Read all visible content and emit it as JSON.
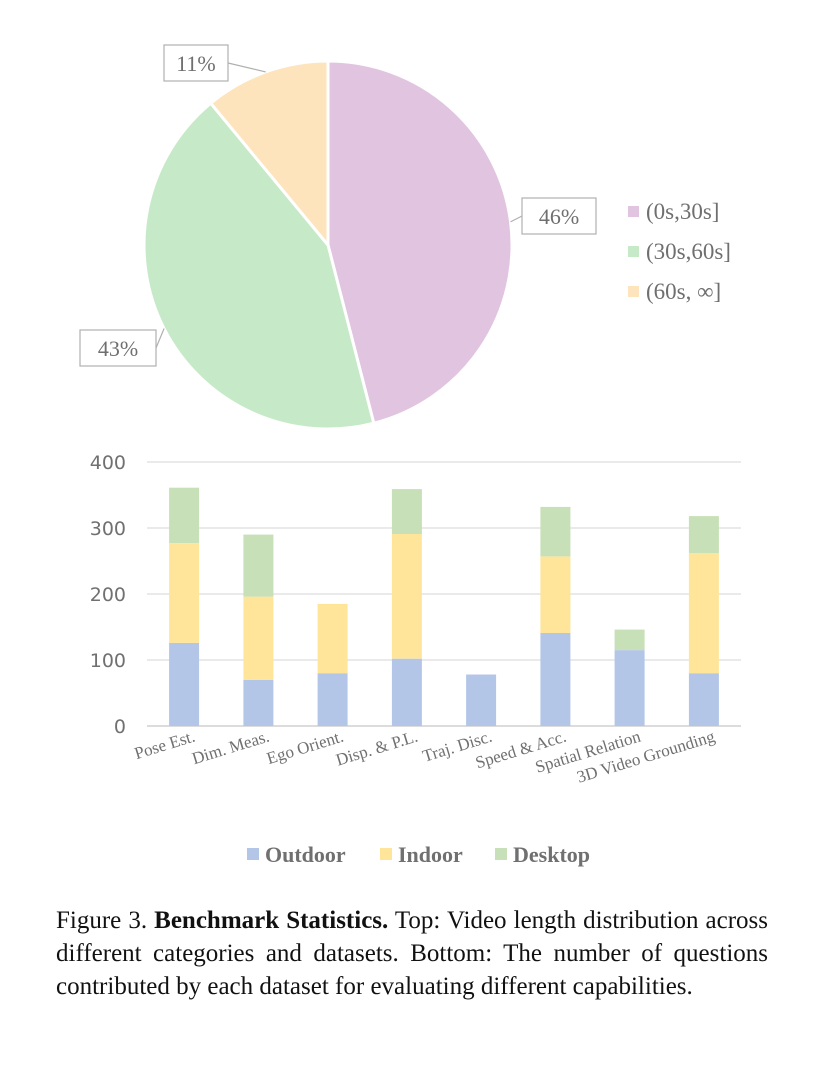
{
  "chart_data": [
    {
      "type": "pie",
      "labels": [
        "(0s,30s]",
        "(30s,60s]",
        "(60s, ∞]"
      ],
      "values": [
        46,
        43,
        11
      ],
      "data_labels": [
        "46%",
        "43%",
        "11%"
      ],
      "colors": [
        "#e1c4e0",
        "#c6e9c7",
        "#fde4bd"
      ],
      "legend_position": "right"
    },
    {
      "type": "bar",
      "stacked": true,
      "categories": [
        "Pose Est.",
        "Dim. Meas.",
        "Ego Orient.",
        "Disp. & P.L.",
        "Traj. Disc.",
        "Speed & Acc.",
        "Spatial Relation",
        "3D Video Grounding"
      ],
      "series": [
        {
          "name": "Outdoor",
          "color": "#b4c6e8",
          "values": [
            126,
            70,
            80,
            102,
            78,
            141,
            115,
            80
          ]
        },
        {
          "name": "Indoor",
          "color": "#fee59a",
          "values": [
            151,
            126,
            105,
            189,
            0,
            116,
            0,
            182
          ]
        },
        {
          "name": "Desktop",
          "color": "#c7e0b7",
          "values": [
            84,
            94,
            0,
            68,
            0,
            75,
            31,
            56
          ]
        }
      ],
      "ylim": [
        0,
        400
      ],
      "yticks": [
        0,
        100,
        200,
        300,
        400
      ],
      "grid": true,
      "legend_position": "bottom"
    }
  ],
  "caption": {
    "label": "Figure 3.",
    "title": "Benchmark Statistics.",
    "text": "Top: Video length distribution across different categories and datasets. Bottom: The number of questions contributed by each dataset for evaluating different capabilities."
  }
}
